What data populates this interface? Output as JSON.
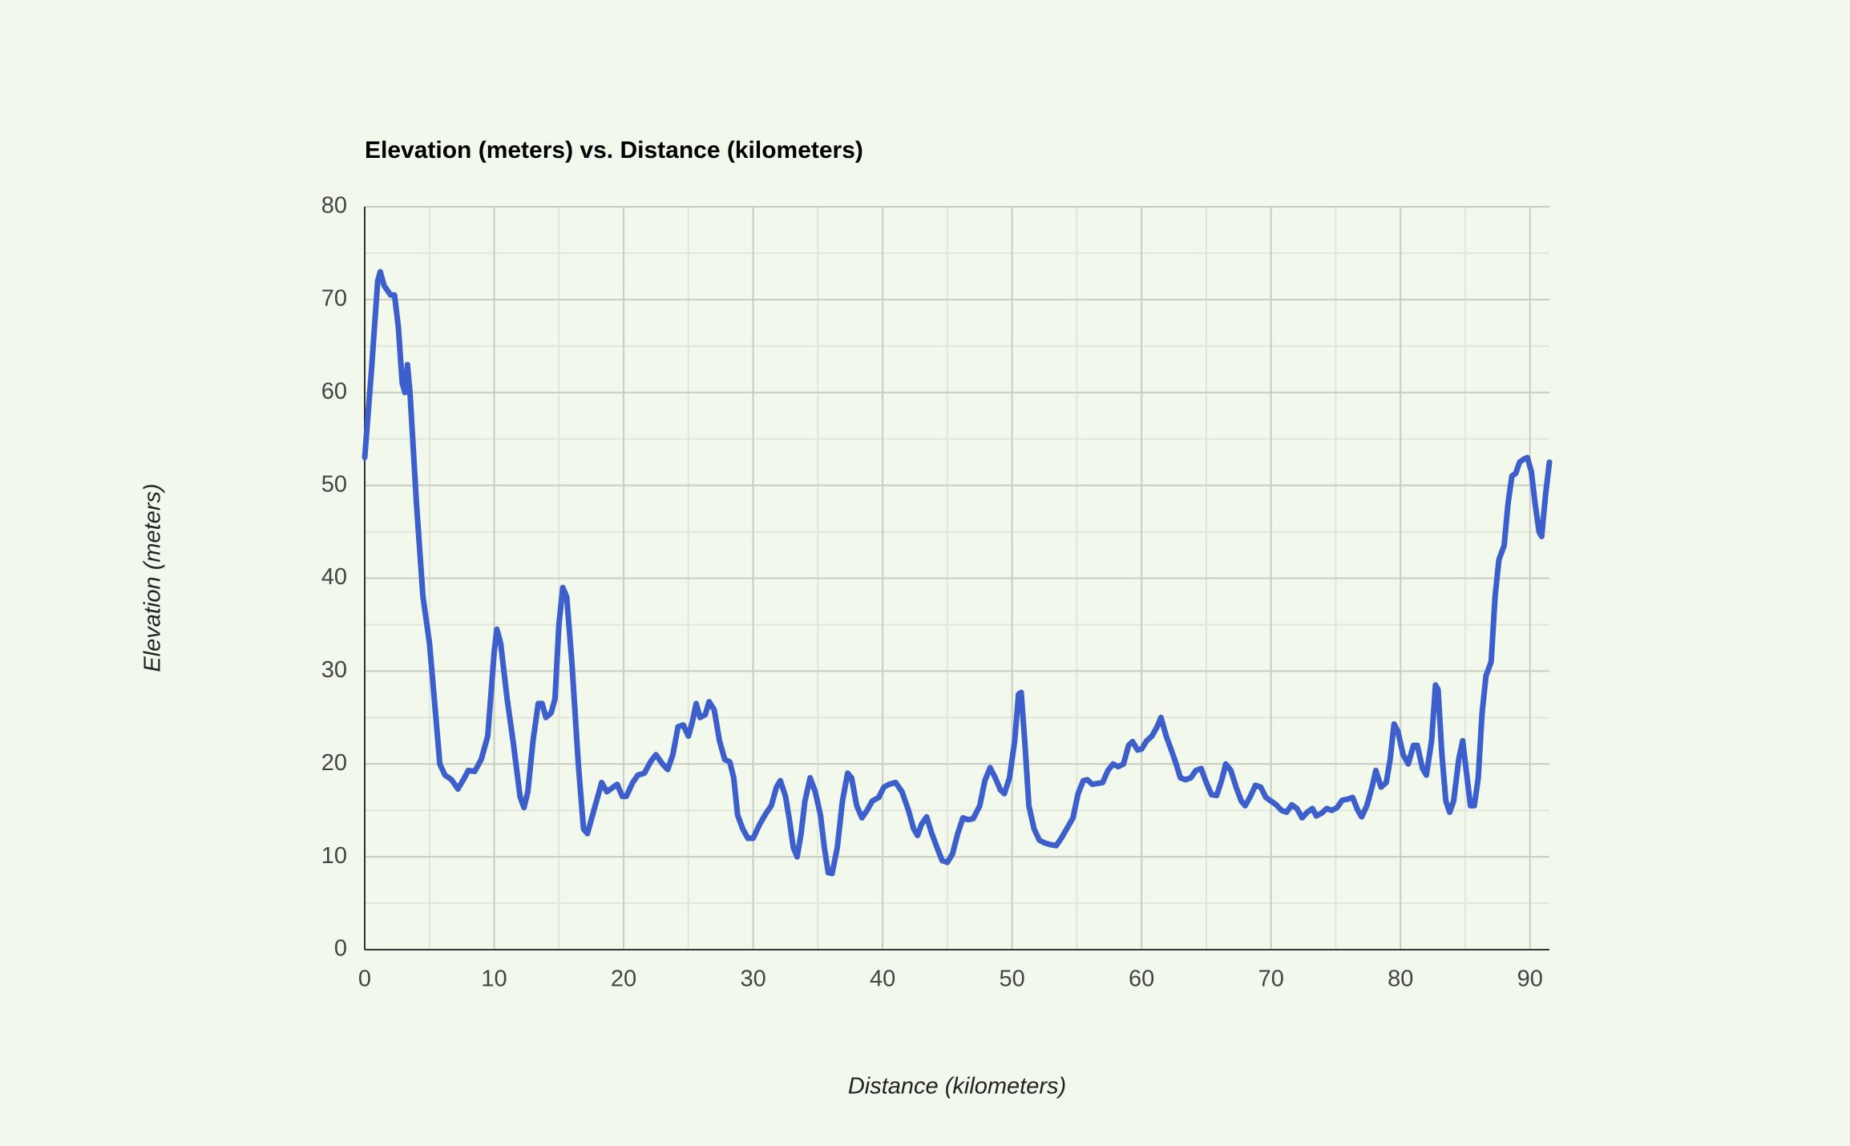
{
  "chart_data": {
    "type": "line",
    "title": "Elevation (meters) vs. Distance (kilometers)",
    "x_label": "Distance (kilometers)",
    "y_label": "Elevation (meters)",
    "x": [
      0,
      0.5,
      1,
      1.2,
      1.5,
      2,
      2.3,
      2.6,
      2.9,
      3.1,
      3.3,
      3.5,
      4,
      4.5,
      5,
      5.5,
      5.8,
      6.2,
      6.7,
      7.2,
      7.7,
      8,
      8.5,
      9,
      9.5,
      10,
      10.2,
      10.5,
      11,
      11.5,
      12,
      12.3,
      12.6,
      13,
      13.4,
      13.7,
      14,
      14.4,
      14.7,
      15,
      15.3,
      15.6,
      16,
      16.5,
      16.9,
      17.2,
      17.6,
      18,
      18.3,
      18.7,
      19.2,
      19.5,
      19.9,
      20.2,
      20.7,
      21.1,
      21.6,
      22.1,
      22.5,
      23,
      23.4,
      23.8,
      24.2,
      24.6,
      25,
      25.3,
      25.6,
      25.9,
      26.3,
      26.6,
      27,
      27.4,
      27.8,
      28.2,
      28.5,
      28.8,
      29.2,
      29.6,
      30,
      30.5,
      31,
      31.4,
      31.8,
      32.1,
      32.5,
      32.8,
      33.1,
      33.4,
      33.7,
      34,
      34.4,
      34.8,
      35.2,
      35.5,
      35.8,
      36.1,
      36.5,
      36.9,
      37.3,
      37.6,
      38,
      38.4,
      38.8,
      39.2,
      39.7,
      40.1,
      40.5,
      41,
      41.5,
      42,
      42.4,
      42.7,
      43,
      43.4,
      43.8,
      44.2,
      44.6,
      45,
      45.4,
      45.8,
      46.2,
      46.6,
      47,
      47.5,
      47.9,
      48.3,
      48.7,
      49.1,
      49.4,
      49.8,
      50.2,
      50.5,
      50.7,
      51,
      51.3,
      51.7,
      52.1,
      52.5,
      53,
      53.4,
      53.8,
      54.3,
      54.7,
      55.1,
      55.5,
      55.8,
      56.2,
      56.6,
      57,
      57.4,
      57.8,
      58.2,
      58.6,
      59,
      59.3,
      59.7,
      60,
      60.4,
      60.8,
      61.2,
      61.5,
      61.9,
      62.3,
      62.6,
      63,
      63.4,
      63.8,
      64.2,
      64.6,
      65,
      65.4,
      65.8,
      66.2,
      66.5,
      66.9,
      67.3,
      67.7,
      68,
      68.4,
      68.8,
      69.2,
      69.6,
      70,
      70.4,
      70.8,
      71.2,
      71.6,
      72,
      72.4,
      72.8,
      73.2,
      73.5,
      73.9,
      74.3,
      74.7,
      75.1,
      75.5,
      75.9,
      76.3,
      76.7,
      77,
      77.4,
      77.8,
      78.1,
      78.5,
      78.9,
      79.2,
      79.5,
      79.8,
      80.2,
      80.6,
      81,
      81.3,
      81.7,
      82,
      82.4,
      82.7,
      82.9,
      83.2,
      83.5,
      83.8,
      84.1,
      84.5,
      84.8,
      85.1,
      85.4,
      85.7,
      86,
      86.3,
      86.6,
      87,
      87.3,
      87.6,
      88,
      88.3,
      88.6,
      88.9,
      89.2,
      89.5,
      89.8,
      90.1,
      90.4,
      90.7,
      90.9,
      91.2,
      91.5
    ],
    "series": [
      {
        "name": "Elevation",
        "color": "#3d5fcb",
        "values": [
          53,
          62,
          72,
          73,
          71.5,
          70.5,
          70.5,
          67,
          61,
          60,
          63,
          60,
          48,
          38,
          33,
          25,
          20,
          18.8,
          18.3,
          17.3,
          18.5,
          19.3,
          19.2,
          20.5,
          23,
          32,
          34.5,
          33,
          27,
          22,
          16.5,
          15.3,
          17,
          22.5,
          26.5,
          26.5,
          25,
          25.5,
          27,
          35,
          39,
          38,
          31,
          20,
          13,
          12.5,
          14.5,
          16.5,
          18,
          17,
          17.5,
          17.8,
          16.5,
          16.5,
          18,
          18.8,
          19,
          20.3,
          21,
          20,
          19.4,
          21,
          24,
          24.2,
          23,
          24.5,
          26.5,
          25,
          25.3,
          26.7,
          25.8,
          22.5,
          20.5,
          20.2,
          18.5,
          14.5,
          13,
          12,
          12,
          13.5,
          14.7,
          15.5,
          17.5,
          18.2,
          16.5,
          14,
          11,
          10,
          12.5,
          16,
          18.5,
          17,
          14.5,
          11,
          8.3,
          8.2,
          11,
          16,
          19,
          18.5,
          15.5,
          14.2,
          15,
          16,
          16.4,
          17.5,
          17.8,
          18,
          17,
          15,
          13,
          12.3,
          13.5,
          14.3,
          12.5,
          11,
          9.6,
          9.4,
          10.3,
          12.5,
          14.2,
          14,
          14.1,
          15.5,
          18.2,
          19.6,
          18.5,
          17.2,
          16.8,
          18.5,
          22.5,
          27.5,
          27.7,
          22,
          15.5,
          13,
          11.8,
          11.5,
          11.3,
          11.2,
          12,
          13.2,
          14.2,
          16.8,
          18.2,
          18.3,
          17.8,
          17.9,
          18,
          19.3,
          20,
          19.7,
          20,
          22,
          22.4,
          21.5,
          21.6,
          22.5,
          23,
          24,
          25,
          23,
          21.5,
          20.3,
          18.5,
          18.3,
          18.5,
          19.3,
          19.5,
          18,
          16.7,
          16.6,
          18.3,
          20,
          19.3,
          17.5,
          16,
          15.5,
          16.5,
          17.7,
          17.5,
          16.4,
          16,
          15.6,
          15,
          14.8,
          15.6,
          15.2,
          14.2,
          14.8,
          15.2,
          14.4,
          14.7,
          15.2,
          15,
          15.3,
          16.1,
          16.2,
          16.4,
          15,
          14.3,
          15.5,
          17.5,
          19.3,
          17.5,
          18,
          20.5,
          24.3,
          23.5,
          21,
          20,
          22,
          22,
          19.5,
          18.8,
          22.5,
          28.5,
          28,
          21,
          16,
          14.8,
          16,
          20.5,
          22.5,
          19,
          15.5,
          15.5,
          18.5,
          25.5,
          29.5,
          31,
          38,
          42,
          43.5,
          48,
          51,
          51.3,
          52.5,
          52.8,
          53,
          51.5,
          48,
          45,
          44.5,
          49,
          52.5
        ]
      }
    ],
    "xlim": [
      0,
      91.5
    ],
    "ylim": [
      0,
      80
    ],
    "xticks": [
      0,
      10,
      20,
      30,
      40,
      50,
      60,
      70,
      80,
      90
    ],
    "yticks": [
      0,
      10,
      20,
      30,
      40,
      50,
      60,
      70,
      80
    ],
    "xminorticks": [
      5,
      15,
      25,
      35,
      45,
      55,
      65,
      75,
      85
    ],
    "yminorticks": [
      5,
      15,
      25,
      35,
      45,
      55,
      65,
      75
    ],
    "grid": true
  }
}
